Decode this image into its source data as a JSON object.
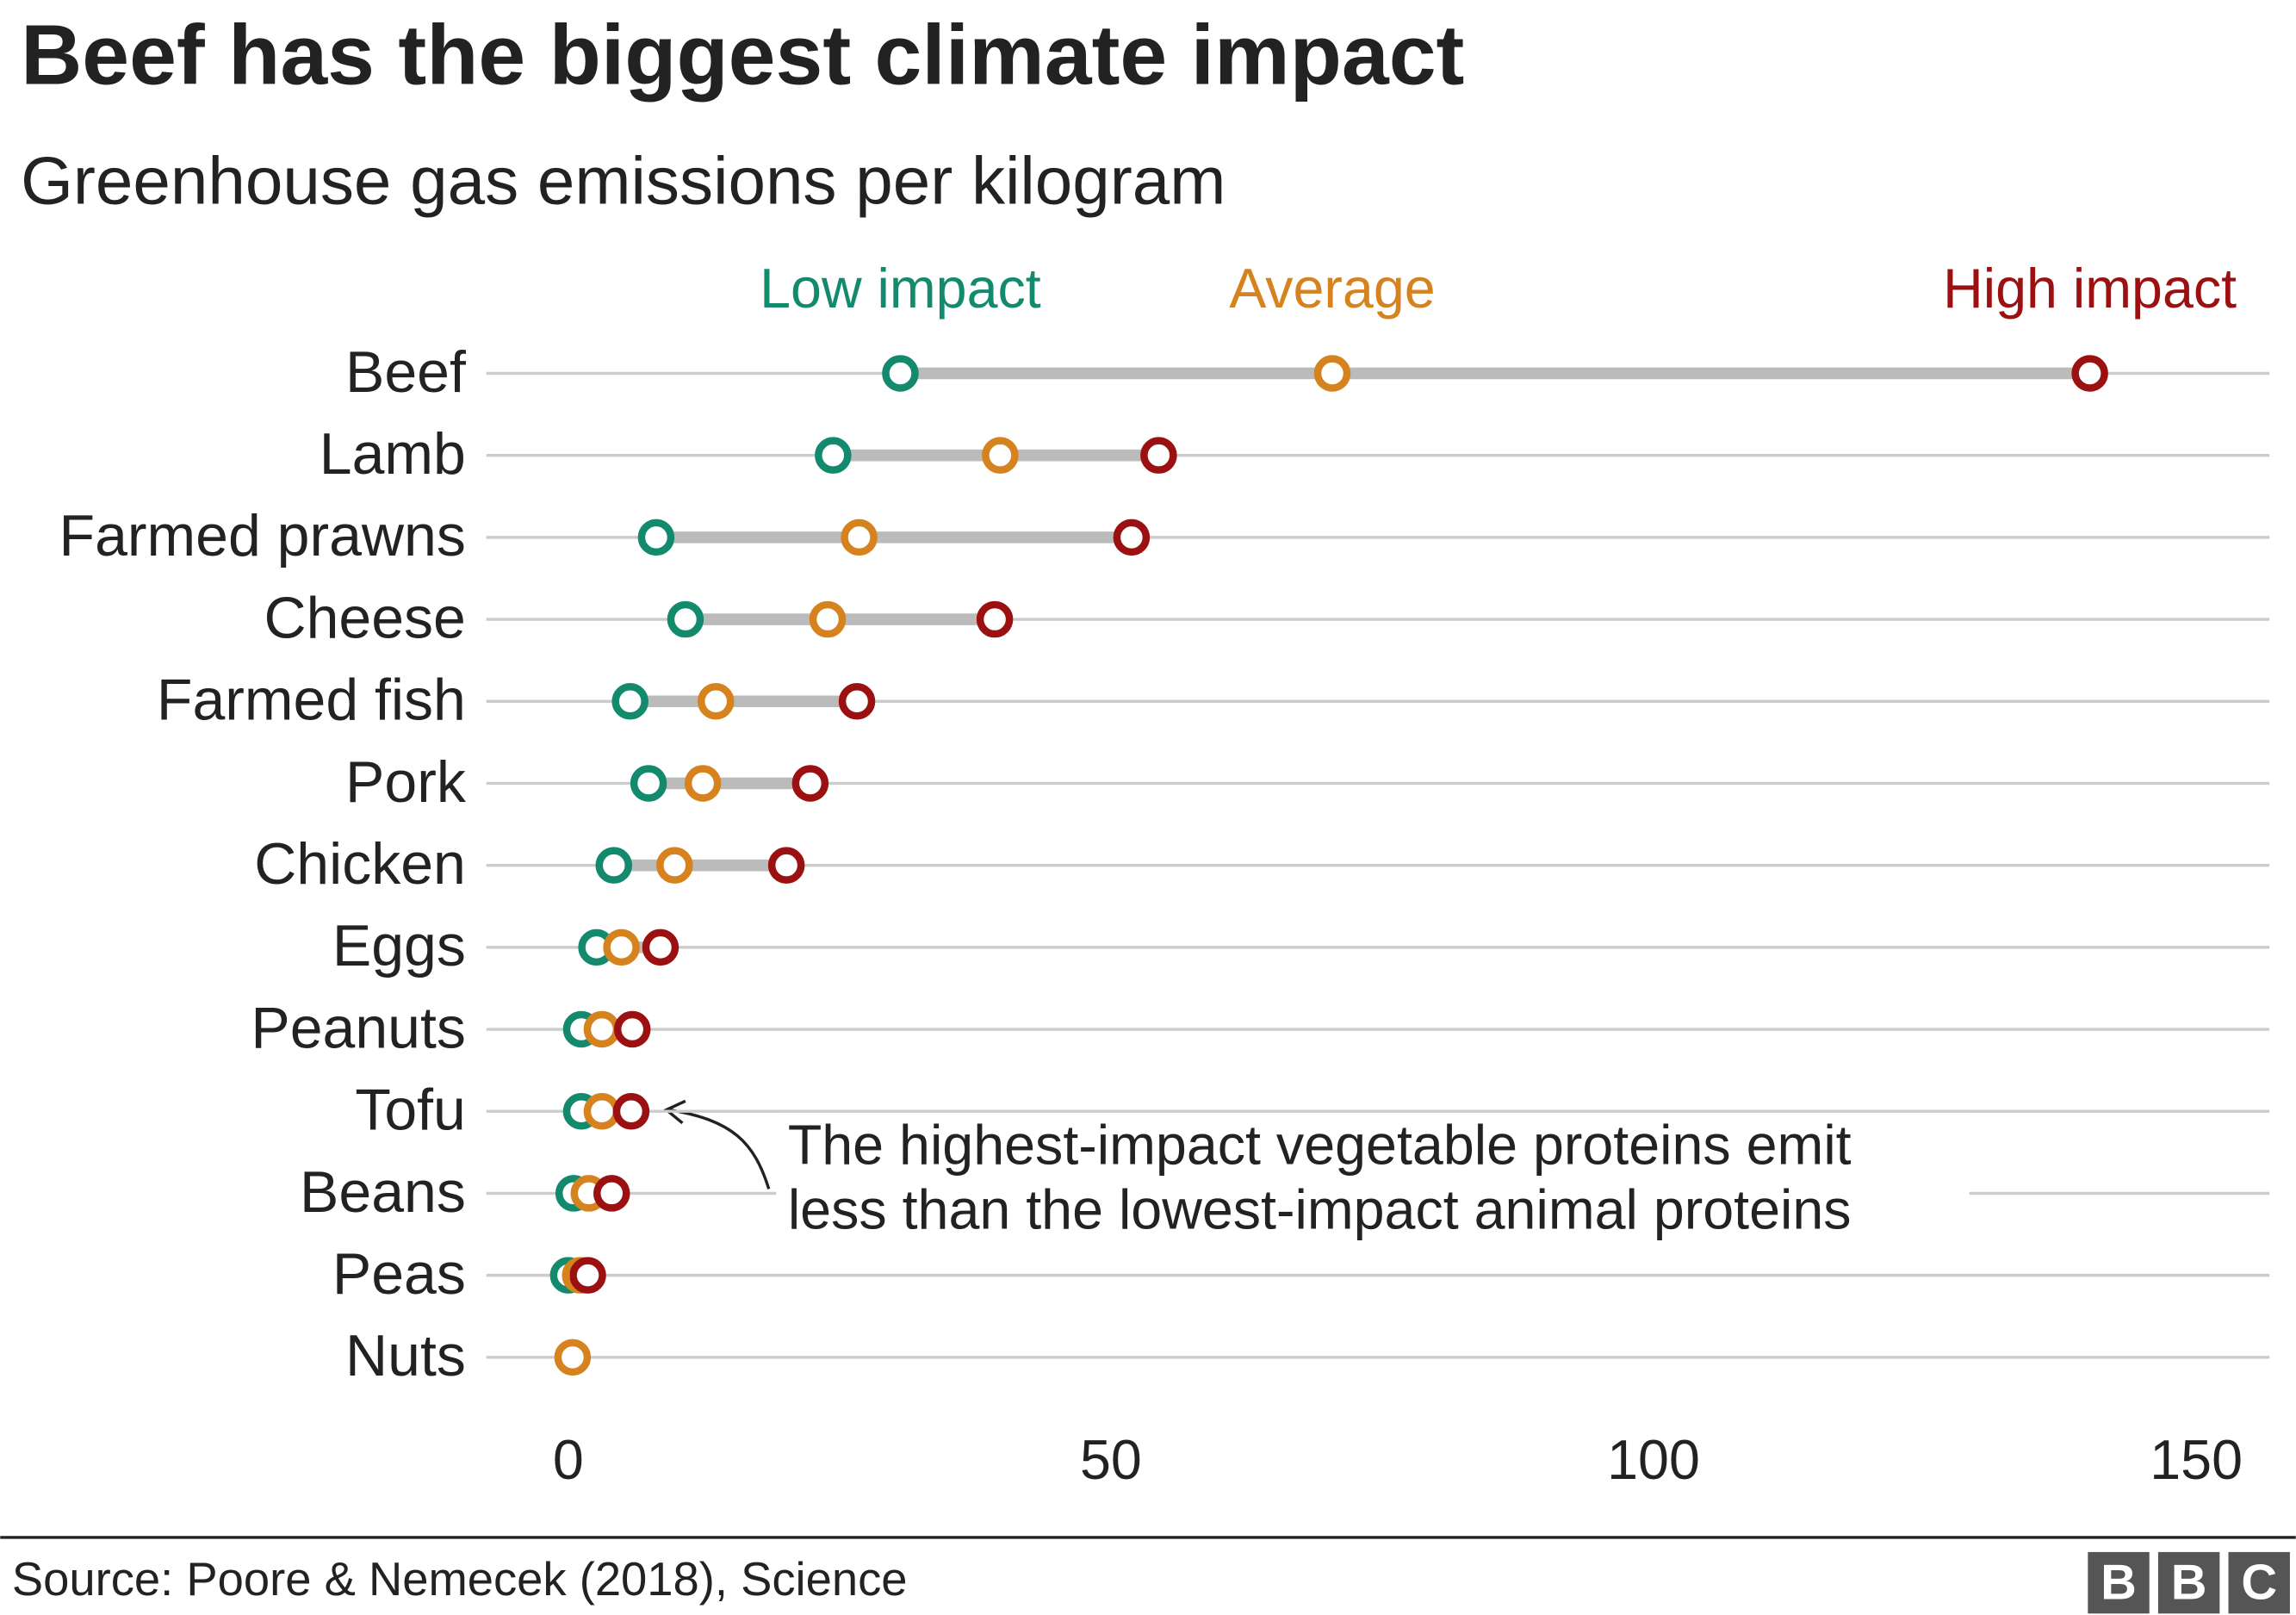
{
  "chart_data": {
    "type": "dumbbell",
    "title": "Beef has the biggest climate impact",
    "subtitle": "Greenhouse gas emissions per kilogram",
    "categories": [
      "Beef",
      "Lamb",
      "Farmed prawns",
      "Cheese",
      "Farmed fish",
      "Pork",
      "Chicken",
      "Eggs",
      "Peanuts",
      "Tofu",
      "Beans",
      "Peas",
      "Nuts"
    ],
    "series": [
      {
        "name": "Low impact",
        "color": "#138a6e",
        "values": [
          30.6,
          24.4,
          8.1,
          10.8,
          5.7,
          7.4,
          4.2,
          2.6,
          1.2,
          1.2,
          0.5,
          0,
          null
        ]
      },
      {
        "name": "Average",
        "color": "#d5821f",
        "values": [
          70.4,
          39.8,
          26.8,
          23.9,
          13.6,
          12.4,
          9.8,
          4.9,
          3.1,
          3.1,
          1.9,
          1.1,
          0.4
        ]
      },
      {
        "name": "High impact",
        "color": "#9b1010",
        "values": [
          140.2,
          54.4,
          51.9,
          39.3,
          26.6,
          22.3,
          20.1,
          8.5,
          5.9,
          5.8,
          4.0,
          1.8,
          null
        ]
      }
    ],
    "xlim": [
      0,
      150
    ],
    "xticks": [
      0,
      50,
      100,
      150
    ],
    "grid": true,
    "annotation": [
      "The highest-impact vegetable proteins emit",
      "less than the lowest-impact animal proteins"
    ],
    "source": "Source: Poore & Nemecek (2018), Science",
    "logo": [
      "B",
      "B",
      "C"
    ]
  }
}
